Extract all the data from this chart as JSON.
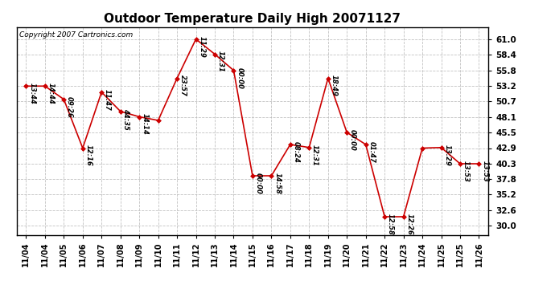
{
  "title": "Outdoor Temperature Daily High 20071127",
  "copyright_text": "Copyright 2007 Cartronics.com",
  "yticks": [
    30.0,
    32.6,
    35.2,
    37.8,
    40.3,
    42.9,
    45.5,
    48.1,
    50.7,
    53.2,
    55.8,
    58.4,
    61.0
  ],
  "x_tick_labels": [
    "11/04",
    "11/04",
    "11/05",
    "11/06",
    "11/07",
    "11/08",
    "11/09",
    "11/10",
    "11/11",
    "11/12",
    "11/13",
    "11/14",
    "11/15",
    "11/16",
    "11/17",
    "11/18",
    "11/19",
    "11/20",
    "11/21",
    "11/22",
    "11/23",
    "11/24",
    "11/25",
    "11/25",
    "11/26"
  ],
  "y_vals": [
    53.2,
    53.2,
    51.0,
    42.9,
    52.2,
    49.0,
    48.1,
    47.5,
    54.5,
    61.0,
    58.5,
    55.8,
    38.3,
    38.3,
    43.5,
    43.0,
    54.5,
    45.5,
    43.5,
    31.5,
    31.5,
    42.9,
    43.0,
    40.3,
    40.3
  ],
  "time_labels": [
    "13:44",
    "14:44",
    "09:26",
    "12:16",
    "11:47",
    "44:35",
    "14:14",
    "",
    "23:57",
    "11:29",
    "12:31",
    "00:00",
    "00:00",
    "14:58",
    "08:24",
    "12:31",
    "18:49",
    "00:00",
    "01:47",
    "12:58",
    "12:26",
    "",
    "13:29",
    "13:53",
    "13:53"
  ],
  "line_color": "#cc0000",
  "marker_color": "#cc0000",
  "bg_color": "#ffffff",
  "grid_color": "#bbbbbb",
  "ylim_low": 28.5,
  "ylim_high": 63.0
}
